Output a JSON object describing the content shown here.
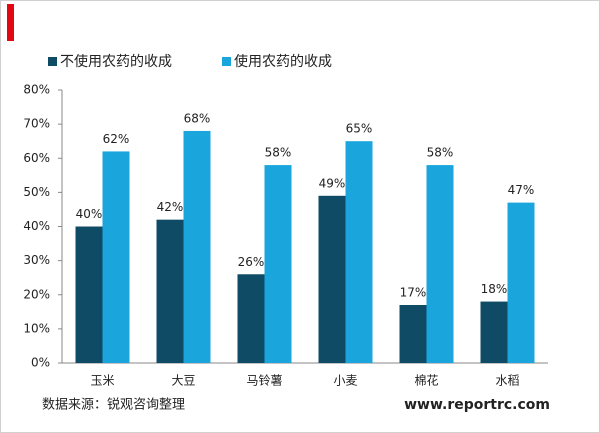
{
  "chart_data": {
    "type": "bar",
    "categories": [
      "玉米",
      "大豆",
      "马铃薯",
      "小麦",
      "棉花",
      "水稻"
    ],
    "series": [
      {
        "name": "不使用农药的收成",
        "color": "#0f4b65",
        "values": [
          40,
          42,
          26,
          49,
          17,
          18
        ],
        "value_labels": [
          "40%",
          "42%",
          "26%",
          "49%",
          "17%",
          "18%"
        ]
      },
      {
        "name": "使用农药的收成",
        "color": "#1aa6dd",
        "values": [
          62,
          68,
          58,
          65,
          58,
          47
        ],
        "value_labels": [
          "62%",
          "68%",
          "58%",
          "65%",
          "58%",
          "47%"
        ]
      }
    ],
    "ylim": [
      0,
      80
    ],
    "yticks": [
      {
        "value": 0,
        "label": "0%"
      },
      {
        "value": 10,
        "label": "10%"
      },
      {
        "value": 20,
        "label": "20%"
      },
      {
        "value": 30,
        "label": "30%"
      },
      {
        "value": 40,
        "label": "40%"
      },
      {
        "value": 50,
        "label": "50%"
      },
      {
        "value": 60,
        "label": "60%"
      },
      {
        "value": 70,
        "label": "70%"
      },
      {
        "value": 80,
        "label": "80%"
      }
    ],
    "grid": false,
    "legend": "top",
    "source": "数据来源：锐观咨询整理",
    "website": "www.reportrc.com"
  }
}
